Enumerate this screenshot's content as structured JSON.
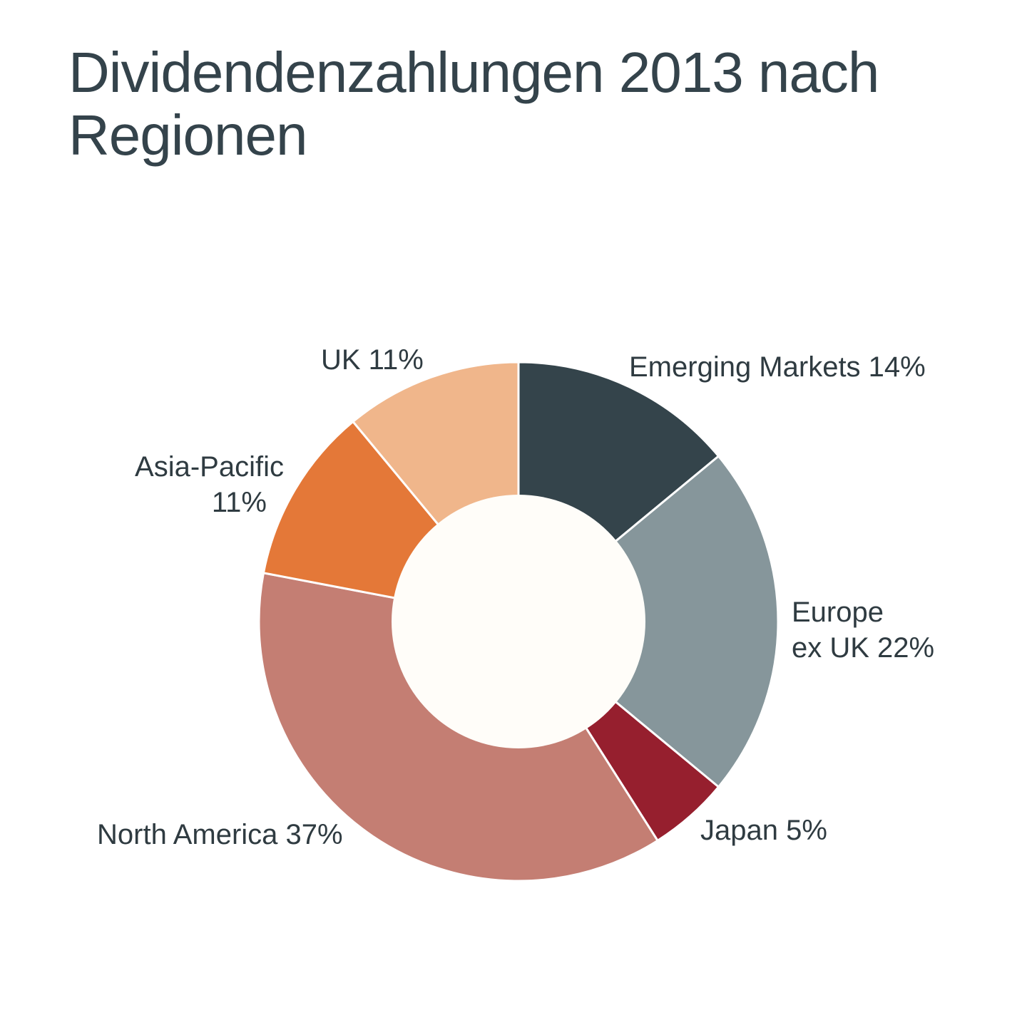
{
  "title": "Dividendenzahlungen 2013 nach Regionen",
  "chart_data": {
    "type": "pie",
    "style": "donut",
    "title": "Dividendenzahlungen 2013 nach Regionen",
    "unit": "%",
    "slices": [
      {
        "label": "Emerging Markets",
        "value": 14,
        "label_lines": [
          "Emerging Markets 14%"
        ],
        "color": "#34444b"
      },
      {
        "label": "Europe ex UK",
        "value": 22,
        "label_lines": [
          "Europe",
          "ex UK 22%"
        ],
        "color": "#86969b"
      },
      {
        "label": "Japan",
        "value": 5,
        "label_lines": [
          "Japan 5%"
        ],
        "color": "#961f2e"
      },
      {
        "label": "North America",
        "value": 37,
        "label_lines": [
          "North America 37%"
        ],
        "color": "#c47e73"
      },
      {
        "label": "Asia-Pacific",
        "value": 11,
        "label_lines": [
          "Asia-Pacific",
          "11%"
        ],
        "color": "#e47838"
      },
      {
        "label": "UK",
        "value": 11,
        "label_lines": [
          "UK 11%"
        ],
        "color": "#f0b68b"
      }
    ],
    "start_angle": "12 o'clock",
    "direction": "clockwise",
    "hole_color": "#fffdf9",
    "legend": "none"
  }
}
